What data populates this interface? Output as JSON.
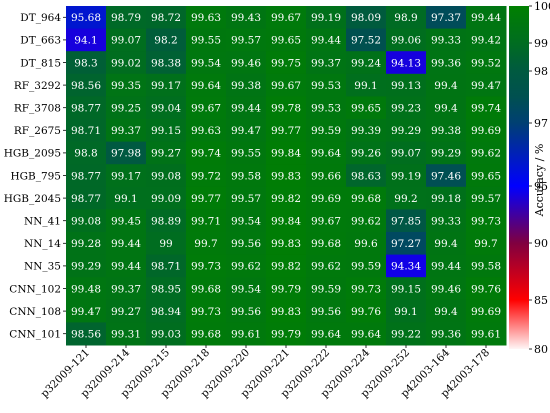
{
  "chart_data": {
    "type": "heatmap",
    "title": "",
    "xlabel": "",
    "ylabel": "",
    "rows": [
      "DT_964",
      "DT_663",
      "DT_815",
      "RF_3292",
      "RF_3708",
      "RF_2675",
      "HGB_2095",
      "HGB_795",
      "HGB_2045",
      "NN_41",
      "NN_14",
      "NN_35",
      "CNN_102",
      "CNN_108",
      "CNN_101"
    ],
    "columns": [
      "p32009-121",
      "p32009-214",
      "p32009-215",
      "p32009-218",
      "p32009-220",
      "p32009-221",
      "p32009-222",
      "p32009-224",
      "p32009-252",
      "p42003-164",
      "p42003-178"
    ],
    "values": [
      [
        95.68,
        98.79,
        98.72,
        99.63,
        99.43,
        99.67,
        99.19,
        98.09,
        98.9,
        97.37,
        99.44
      ],
      [
        94.1,
        99.07,
        98.2,
        99.55,
        99.57,
        99.65,
        99.44,
        97.52,
        99.06,
        99.33,
        99.42
      ],
      [
        98.3,
        99.02,
        98.38,
        99.54,
        99.46,
        99.75,
        99.37,
        99.24,
        94.13,
        99.36,
        99.52
      ],
      [
        98.56,
        99.35,
        99.17,
        99.64,
        99.38,
        99.67,
        99.53,
        99.1,
        99.13,
        99.4,
        99.47
      ],
      [
        98.77,
        99.25,
        99.04,
        99.67,
        99.44,
        99.78,
        99.53,
        99.65,
        99.23,
        99.4,
        99.74
      ],
      [
        98.71,
        99.37,
        99.15,
        99.63,
        99.47,
        99.77,
        99.59,
        99.39,
        99.29,
        99.38,
        99.69
      ],
      [
        98.8,
        97.98,
        99.27,
        99.74,
        99.55,
        99.84,
        99.64,
        99.26,
        99.07,
        99.29,
        99.62
      ],
      [
        98.77,
        99.17,
        99.08,
        99.72,
        99.58,
        99.83,
        99.66,
        98.63,
        99.19,
        97.46,
        99.65
      ],
      [
        98.77,
        99.1,
        99.09,
        99.77,
        99.57,
        99.82,
        99.69,
        99.68,
        99.2,
        99.18,
        99.57
      ],
      [
        99.08,
        99.45,
        98.89,
        99.71,
        99.54,
        99.84,
        99.67,
        99.62,
        97.85,
        99.33,
        99.73
      ],
      [
        99.28,
        99.44,
        99,
        99.7,
        99.56,
        99.83,
        99.68,
        99.6,
        97.27,
        99.4,
        99.7
      ],
      [
        99.29,
        99.44,
        98.71,
        99.73,
        99.62,
        99.82,
        99.62,
        99.59,
        94.34,
        99.44,
        99.58
      ],
      [
        99.48,
        99.37,
        98.95,
        99.68,
        99.54,
        99.79,
        99.59,
        99.73,
        99.15,
        99.46,
        99.76
      ],
      [
        99.47,
        99.27,
        98.94,
        99.73,
        99.56,
        99.83,
        99.56,
        99.76,
        99.1,
        99.4,
        99.69
      ],
      [
        98.56,
        99.31,
        99.03,
        99.68,
        99.61,
        99.79,
        99.64,
        99.64,
        99.22,
        99.36,
        99.61
      ]
    ],
    "colorbar": {
      "label": "Accuracy / %",
      "ticks": [
        80,
        85,
        90,
        95,
        97,
        98,
        99,
        100
      ],
      "range": [
        80,
        100
      ],
      "colormap": [
        "#fff5f5",
        "#ff0000",
        "#800040",
        "#0000ff",
        "#005050",
        "#008000"
      ]
    },
    "grid": false
  }
}
